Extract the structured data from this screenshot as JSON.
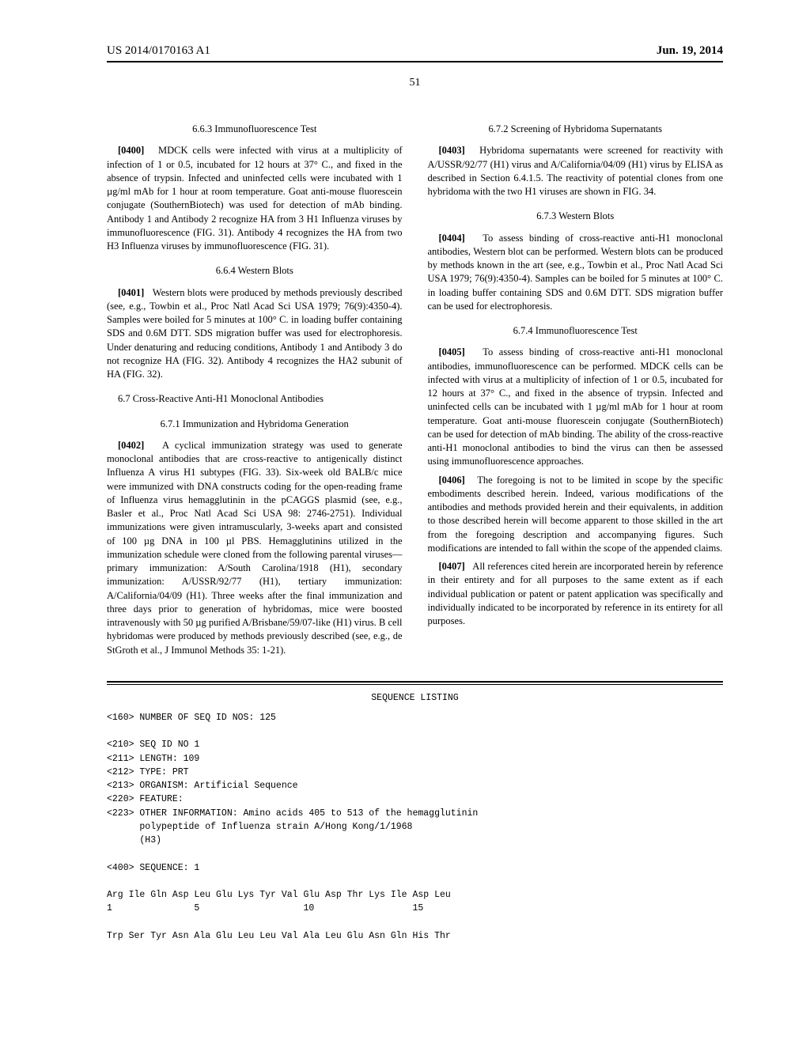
{
  "header": {
    "publication_number": "US 2014/0170163 A1",
    "date": "Jun. 19, 2014",
    "page_number": "51"
  },
  "left_column": {
    "sec_663_title": "6.6.3 Immunofluorescence Test",
    "para_0400_num": "[0400]",
    "para_0400": "MDCK cells were infected with virus at a multiplicity of infection of 1 or 0.5, incubated for 12 hours at 37° C., and fixed in the absence of trypsin. Infected and uninfected cells were incubated with 1 µg/ml mAb for 1 hour at room temperature. Goat anti-mouse fluorescein conjugate (SouthernBiotech) was used for detection of mAb binding. Antibody 1 and Antibody 2 recognize HA from 3 H1 Influenza viruses by immunofluorescence (FIG. 31). Antibody 4 recognizes the HA from two H3 Influenza viruses by immunofluorescence (FIG. 31).",
    "sec_664_title": "6.6.4 Western Blots",
    "para_0401_num": "[0401]",
    "para_0401": "Western blots were produced by methods previously described (see, e.g., Towbin et al., Proc Natl Acad Sci USA 1979; 76(9):4350-4). Samples were boiled for 5 minutes at 100° C. in loading buffer containing SDS and 0.6M DTT. SDS migration buffer was used for electrophoresis. Under denaturing and reducing conditions, Antibody 1 and Antibody 3 do not recognize HA (FIG. 32). Antibody 4 recognizes the HA2 subunit of HA (FIG. 32).",
    "sec_67_title": "6.7 Cross-Reactive Anti-H1 Monoclonal Antibodies",
    "sec_671_title": "6.7.1 Immunization and Hybridoma Generation",
    "para_0402_num": "[0402]",
    "para_0402": "A cyclical immunization strategy was used to generate monoclonal antibodies that are cross-reactive to antigenically distinct Influenza A virus H1 subtypes (FIG. 33). Six-week old BALB/c mice were immunized with DNA constructs coding for the open-reading frame of Influenza virus hemagglutinin in the pCAGGS plasmid (see, e.g., Basler et al., Proc Natl Acad Sci USA 98: 2746-2751). Individual immunizations were given intramuscularly, 3-weeks apart and consisted of 100 µg DNA in 100 µl PBS. Hemagglutinins utilized in the immunization schedule were cloned from the following parental viruses—primary immunization: A/South Carolina/1918 (H1), secondary immunization: A/USSR/92/77 (H1), tertiary immunization: A/California/04/09 (H1). Three weeks after the final immunization and three days prior to generation of hybridomas, mice were boosted intravenously with 50 µg purified A/Brisbane/59/07-like (H1) virus. B cell hybridomas were produced by methods previously described (see, e.g., de StGroth et al., J Immunol Methods 35: 1-21)."
  },
  "right_column": {
    "sec_672_title": "6.7.2 Screening of Hybridoma Supernatants",
    "para_0403_num": "[0403]",
    "para_0403": "Hybridoma supernatants were screened for reactivity with A/USSR/92/77 (H1) virus and A/California/04/09 (H1) virus by ELISA as described in Section 6.4.1.5. The reactivity of potential clones from one hybridoma with the two H1 viruses are shown in FIG. 34.",
    "sec_673_title": "6.7.3 Western Blots",
    "para_0404_num": "[0404]",
    "para_0404": "To assess binding of cross-reactive anti-H1 monoclonal antibodies, Western blot can be performed. Western blots can be produced by methods known in the art (see, e.g., Towbin et al., Proc Natl Acad Sci USA 1979; 76(9):4350-4). Samples can be boiled for 5 minutes at 100° C. in loading buffer containing SDS and 0.6M DTT. SDS migration buffer can be used for electrophoresis.",
    "sec_674_title": "6.7.4 Immunofluorescence Test",
    "para_0405_num": "[0405]",
    "para_0405": "To assess binding of cross-reactive anti-H1 monoclonal antibodies, immunofluorescence can be performed. MDCK cells can be infected with virus at a multiplicity of infection of 1 or 0.5, incubated for 12 hours at 37° C., and fixed in the absence of trypsin. Infected and uninfected cells can be incubated with 1 µg/ml mAb for 1 hour at room temperature. Goat anti-mouse fluorescein conjugate (SouthernBiotech) can be used for detection of mAb binding. The ability of the cross-reactive anti-H1 monoclonal antibodies to bind the virus can then be assessed using immunofluorescence approaches.",
    "para_0406_num": "[0406]",
    "para_0406": "The foregoing is not to be limited in scope by the specific embodiments described herein. Indeed, various modifications of the antibodies and methods provided herein and their equivalents, in addition to those described herein will become apparent to those skilled in the art from the foregoing description and accompanying figures. Such modifications are intended to fall within the scope of the appended claims.",
    "para_0407_num": "[0407]",
    "para_0407": "All references cited herein are incorporated herein by reference in their entirety and for all purposes to the same extent as if each individual publication or patent or patent application was specifically and individually indicated to be incorporated by reference in its entirety for all purposes."
  },
  "sequence": {
    "heading": "SEQUENCE LISTING",
    "line_160": "<160> NUMBER OF SEQ ID NOS: 125",
    "line_210": "<210> SEQ ID NO 1",
    "line_211": "<211> LENGTH: 109",
    "line_212": "<212> TYPE: PRT",
    "line_213": "<213> ORGANISM: Artificial Sequence",
    "line_220": "<220> FEATURE:",
    "line_223a": "<223> OTHER INFORMATION: Amino acids 405 to 513 of the hemagglutinin",
    "line_223b": "      polypeptide of Influenza strain A/Hong Kong/1/1968",
    "line_223c": "      (H3)",
    "line_400": "<400> SEQUENCE: 1",
    "seq_line1": "Arg Ile Gln Asp Leu Glu Lys Tyr Val Glu Asp Thr Lys Ile Asp Leu",
    "seq_nums1": "1               5                   10                  15",
    "seq_line2": "Trp Ser Tyr Asn Ala Glu Leu Leu Val Ala Leu Glu Asn Gln His Thr"
  }
}
